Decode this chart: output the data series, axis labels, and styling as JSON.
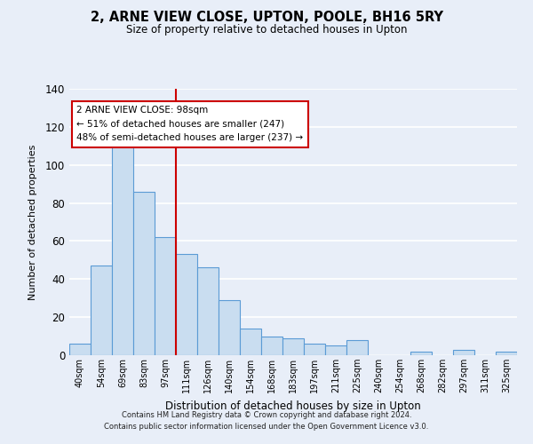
{
  "title": "2, ARNE VIEW CLOSE, UPTON, POOLE, BH16 5RY",
  "subtitle": "Size of property relative to detached houses in Upton",
  "xlabel": "Distribution of detached houses by size in Upton",
  "ylabel": "Number of detached properties",
  "bin_labels": [
    "40sqm",
    "54sqm",
    "69sqm",
    "83sqm",
    "97sqm",
    "111sqm",
    "126sqm",
    "140sqm",
    "154sqm",
    "168sqm",
    "183sqm",
    "197sqm",
    "211sqm",
    "225sqm",
    "240sqm",
    "254sqm",
    "268sqm",
    "282sqm",
    "297sqm",
    "311sqm",
    "325sqm"
  ],
  "bar_values": [
    6,
    47,
    110,
    86,
    62,
    53,
    46,
    29,
    14,
    10,
    9,
    6,
    5,
    8,
    0,
    0,
    2,
    0,
    3,
    0,
    2
  ],
  "bar_color": "#c9ddf0",
  "bar_edge_color": "#5b9bd5",
  "vline_x_index": 4,
  "vline_color": "#cc0000",
  "ylim": [
    0,
    140
  ],
  "yticks": [
    0,
    20,
    40,
    60,
    80,
    100,
    120,
    140
  ],
  "annotation_title": "2 ARNE VIEW CLOSE: 98sqm",
  "annotation_line1": "← 51% of detached houses are smaller (247)",
  "annotation_line2": "48% of semi-detached houses are larger (237) →",
  "footnote1": "Contains HM Land Registry data © Crown copyright and database right 2024.",
  "footnote2": "Contains public sector information licensed under the Open Government Licence v3.0.",
  "background_color": "#e8eef8",
  "grid_color": "#ffffff"
}
